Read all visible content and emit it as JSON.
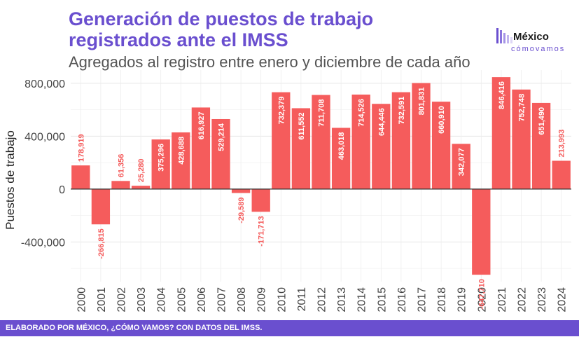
{
  "header": {
    "title_line1": "Generación de puestos de trabajo",
    "title_line2": "registrados ante el IMSS",
    "subtitle": "Agregados al registro entre enero y diciembre de cada año"
  },
  "logo": {
    "word": "México",
    "sub": "cómovamos"
  },
  "footer": {
    "text": "ELABORADO POR MÉXICO, ¿CÓMO VAMOS? CON DATOS DEL IMSS."
  },
  "colors": {
    "accent": "#6a4fcf",
    "bar": "#f55c5c",
    "label_neg": "#f55c5c",
    "label_pos": "#ffffff"
  },
  "chart_data": {
    "type": "bar",
    "ylabel": "Puestos de trabajo",
    "ylim": [
      -700000,
      900000
    ],
    "yticks": [
      -400000,
      0,
      400000,
      800000
    ],
    "ytick_labels": [
      "-400,000",
      "0",
      "400,000",
      "800,000"
    ],
    "grid": true,
    "categories": [
      "2000",
      "2001",
      "2002",
      "2003",
      "2004",
      "2005",
      "2006",
      "2007",
      "2008",
      "2009",
      "2010",
      "2011",
      "2012",
      "2013",
      "2014",
      "2015",
      "2016",
      "2017",
      "2018",
      "2019",
      "2020",
      "2021",
      "2022",
      "2023",
      "2024"
    ],
    "values": [
      178919,
      -266815,
      61356,
      25280,
      375296,
      428688,
      616927,
      529214,
      -29589,
      -171713,
      732379,
      611552,
      711708,
      463018,
      714526,
      644446,
      732591,
      801831,
      660910,
      342077,
      -647710,
      846416,
      752748,
      651490,
      213993
    ],
    "value_labels": [
      "178,919",
      "-266,815",
      "61,356",
      "25,280",
      "375,296",
      "428,688",
      "616,927",
      "529,214",
      "-29,589",
      "-171,713",
      "732,379",
      "611,552",
      "711,708",
      "463,018",
      "714,526",
      "644,446",
      "732,591",
      "801,831",
      "660,910",
      "342,077",
      "-647,710",
      "846,416",
      "752,748",
      "651,490",
      "213,993"
    ]
  }
}
